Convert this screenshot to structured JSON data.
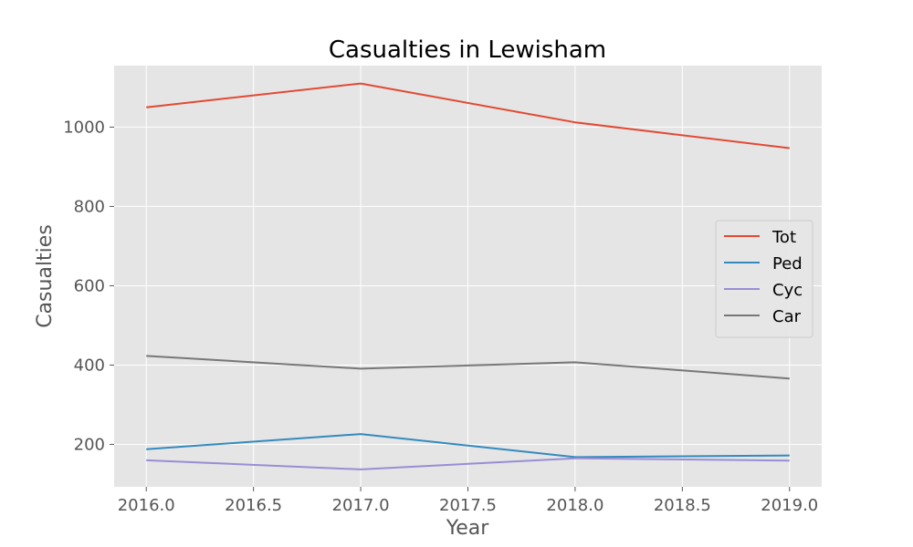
{
  "chart_data": {
    "type": "line",
    "title": "Casualties in Lewisham",
    "xlabel": "Year",
    "ylabel": "Casualties",
    "x": [
      2016,
      2017,
      2018,
      2019
    ],
    "xticks": [
      "2016.0",
      "2016.5",
      "2017.0",
      "2017.5",
      "2018.0",
      "2018.5",
      "2019.0"
    ],
    "yticks": [
      "200",
      "400",
      "600",
      "800",
      "1000"
    ],
    "xlim": [
      2015.85,
      2019.15
    ],
    "ylim": [
      93,
      1155
    ],
    "grid": true,
    "legend_position": "center-right",
    "series": [
      {
        "name": "Tot",
        "color": "#E24A33",
        "values": [
          1050,
          1110,
          1012,
          947
        ]
      },
      {
        "name": "Ped",
        "color": "#348ABD",
        "values": [
          188,
          226,
          168,
          172
        ]
      },
      {
        "name": "Cyc",
        "color": "#988ED5",
        "values": [
          160,
          137,
          165,
          159
        ]
      },
      {
        "name": "Car",
        "color": "#777777",
        "values": [
          423,
          391,
          407,
          366
        ]
      }
    ]
  }
}
